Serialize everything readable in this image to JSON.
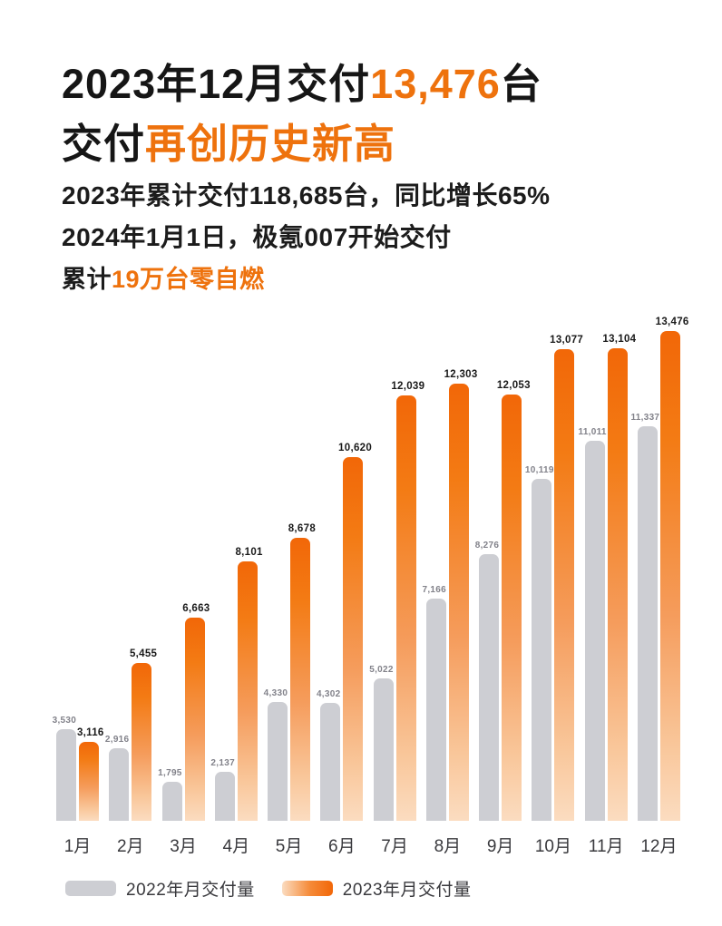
{
  "header": {
    "title_line1": {
      "pre": "2023年12月交付",
      "highlight": "13,476",
      "post": "台"
    },
    "title_line2": {
      "pre": "交付",
      "highlight": "再创历史新高"
    },
    "subtitle1": "2023年累计交付118,685台，同比增长65%",
    "subtitle2": "2024年1月1日，极氪007开始交付",
    "subtitle3": {
      "pre": "累计",
      "highlight": "19万台零自燃"
    }
  },
  "colors": {
    "accent_orange": "#EE720D",
    "bar_orange_top": "#F26708",
    "bar_orange_bottom": "#FBDCC0",
    "bar_gray": "#CDCED3",
    "text_dark": "#161616",
    "gray_value_label": "#82828A"
  },
  "chart_data": {
    "type": "bar",
    "title": "2023年12月交付13,476台 交付再创历史新高",
    "categories": [
      "1月",
      "2月",
      "3月",
      "4月",
      "5月",
      "6月",
      "7月",
      "8月",
      "9月",
      "10月",
      "11月",
      "12月"
    ],
    "series": [
      {
        "name": "2022年月交付量",
        "color": "#CDCED3",
        "values": [
          3530,
          2916,
          1795,
          2137,
          4330,
          4302,
          5022,
          7166,
          8276,
          10119,
          11011,
          11337
        ]
      },
      {
        "name": "2023年月交付量",
        "color": "#F26708",
        "values": [
          3116,
          5455,
          6663,
          8101,
          8678,
          10620,
          12039,
          12303,
          12053,
          13077,
          13104,
          13476
        ]
      }
    ],
    "value_labels": true,
    "grid": false,
    "xlabel": "",
    "ylabel": "",
    "ylim": [
      0,
      13476
    ],
    "legend_position": "bottom"
  },
  "legend": {
    "items": [
      {
        "label": "2022年月交付量"
      },
      {
        "label": "2023年月交付量"
      }
    ]
  }
}
